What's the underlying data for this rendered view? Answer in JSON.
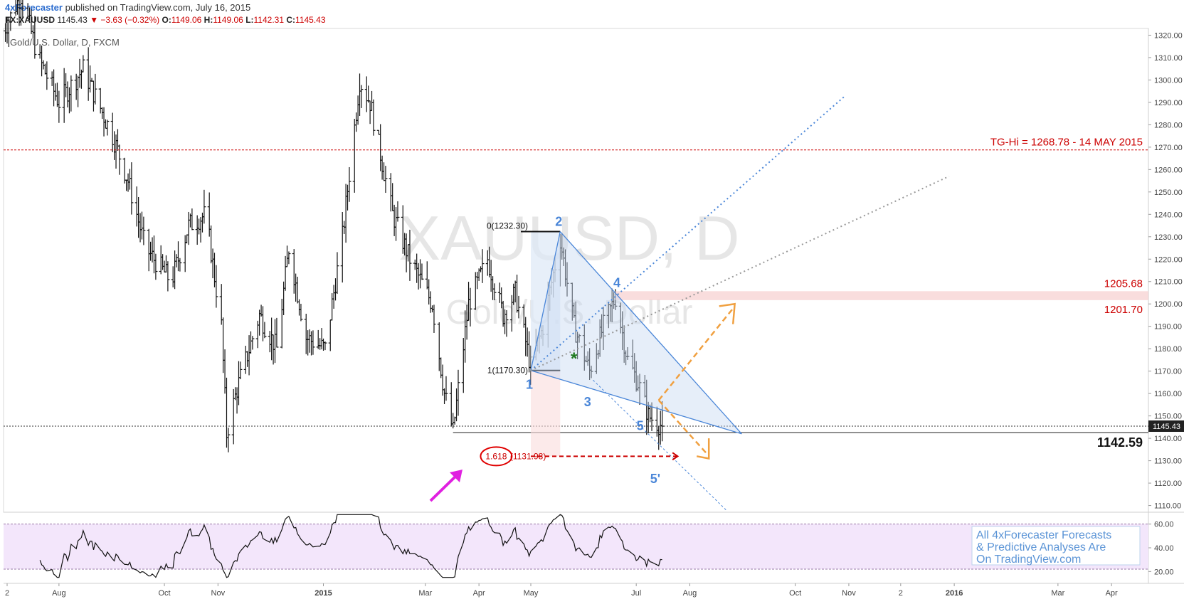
{
  "header": {
    "brand": "4xForecaster",
    "published": " published on TradingView.com, July 16, 2015",
    "symbol": "FX:XAUUSD",
    "last": "1145.43",
    "change": "▼ −3.63 (−0.32%)",
    "o_label": "O:",
    "o_value": "1149.06",
    "h_label": "H:",
    "h_value": "1149.06",
    "l_label": "L:",
    "l_value": "1142.31",
    "c_label": "C:",
    "c_value": "1145.43"
  },
  "chart_data": {
    "type": "ohlc",
    "title": "Gold/U.S. Dollar, D, FXCM",
    "watermark_symbol": "XAUUSD, D",
    "watermark_name": "Gold/U.S. Dollar",
    "price_axis": {
      "ticks": [
        1320,
        1310,
        1300,
        1290,
        1280,
        1270,
        1260,
        1250,
        1240,
        1230,
        1220,
        1210,
        1200,
        1190,
        1180,
        1170,
        1160,
        1150,
        1140,
        1130,
        1120,
        1110
      ],
      "tick_labels": [
        "1320.00",
        "1310.00",
        "1300.00",
        "1290.00",
        "1280.00",
        "1270.00",
        "1260.00",
        "1250.00",
        "1240.00",
        "1230.00",
        "1220.00",
        "1210.00",
        "1200.00",
        "1190.00",
        "1180.00",
        "1170.00",
        "1160.00",
        "1150.00",
        "1140.00",
        "1130.00",
        "1120.00",
        "1110.00"
      ],
      "ylim": [
        1107,
        1323
      ],
      "last_price_label": "1145.43"
    },
    "time_axis": {
      "labels": [
        "2",
        "Aug",
        "Oct",
        "Nov",
        "2015",
        "Mar",
        "Apr",
        "May",
        "Jul",
        "Aug",
        "Oct",
        "Nov",
        "2",
        "2016",
        "Mar",
        "Apr"
      ],
      "bold": [
        false,
        false,
        false,
        false,
        true,
        false,
        false,
        false,
        false,
        false,
        false,
        false,
        false,
        true,
        false,
        false
      ]
    },
    "price_key_points": [
      [
        "2014-06-30",
        1322
      ],
      [
        "2014-07-10",
        1338
      ],
      [
        "2014-07-20",
        1310
      ],
      [
        "2014-08-01",
        1290
      ],
      [
        "2014-08-15",
        1305
      ],
      [
        "2014-09-01",
        1275
      ],
      [
        "2014-09-10",
        1255
      ],
      [
        "2014-09-20",
        1225
      ],
      [
        "2014-10-05",
        1210
      ],
      [
        "2014-10-15",
        1235
      ],
      [
        "2014-10-25",
        1240
      ],
      [
        "2014-11-03",
        1190
      ],
      [
        "2014-11-06",
        1142
      ],
      [
        "2014-11-12",
        1162
      ],
      [
        "2014-11-25",
        1195
      ],
      [
        "2014-12-05",
        1180
      ],
      [
        "2014-12-12",
        1225
      ],
      [
        "2014-12-22",
        1185
      ],
      [
        "2015-01-02",
        1180
      ],
      [
        "2015-01-12",
        1230
      ],
      [
        "2015-01-22",
        1300
      ],
      [
        "2015-01-28",
        1290
      ],
      [
        "2015-02-10",
        1240
      ],
      [
        "2015-02-20",
        1220
      ],
      [
        "2015-03-05",
        1200
      ],
      [
        "2015-03-12",
        1160
      ],
      [
        "2015-03-17",
        1143
      ],
      [
        "2015-03-26",
        1200
      ],
      [
        "2015-04-06",
        1220
      ],
      [
        "2015-04-15",
        1195
      ],
      [
        "2015-04-22",
        1205
      ],
      [
        "2015-05-01",
        1172
      ],
      [
        "2015-05-08",
        1190
      ],
      [
        "2015-05-18",
        1229
      ],
      [
        "2015-05-26",
        1190
      ],
      [
        "2015-06-04",
        1170
      ],
      [
        "2015-06-12",
        1190
      ],
      [
        "2015-06-19",
        1203
      ],
      [
        "2015-06-26",
        1175
      ],
      [
        "2015-07-02",
        1165
      ],
      [
        "2015-07-08",
        1150
      ],
      [
        "2015-07-16",
        1145.43
      ]
    ],
    "rsi": {
      "ticks": [
        60,
        40,
        20
      ],
      "tick_labels": [
        "60.00",
        "40.00",
        "20.00"
      ],
      "band": [
        60,
        22
      ],
      "ylim": [
        10,
        70
      ]
    },
    "annotations": {
      "tg_hi_label": "TG-Hi = 1268.78 - 14 MAY 2015",
      "tg_hi_price": 1268.78,
      "zone_top_label": "1205.68",
      "zone_top": 1205.68,
      "zone_bottom_label": "1201.70",
      "zone_bottom": 1201.7,
      "support_label": "1142.59",
      "support_price": 1142.59,
      "fib_top_label": "0(1232.30)",
      "fib_bottom_label": "1(1170.30)",
      "fib_ext_ratio": "1.618",
      "fib_ext_label": "(1131.98)",
      "wave_labels": [
        "1",
        "2",
        "3",
        "4",
        "5",
        "5'"
      ],
      "star": "*",
      "promo": [
        "All 4xForecaster Forecasts",
        "& Predictive Analyses Are",
        "On TradingView.com"
      ]
    },
    "colors": {
      "wave_blue": "#4a86d8",
      "resistance_red": "#cc0000",
      "target_orange": "#f0a040",
      "rsi_band": "#f3e6fb",
      "arrow_magenta": "#e020e0"
    },
    "grid": true
  }
}
